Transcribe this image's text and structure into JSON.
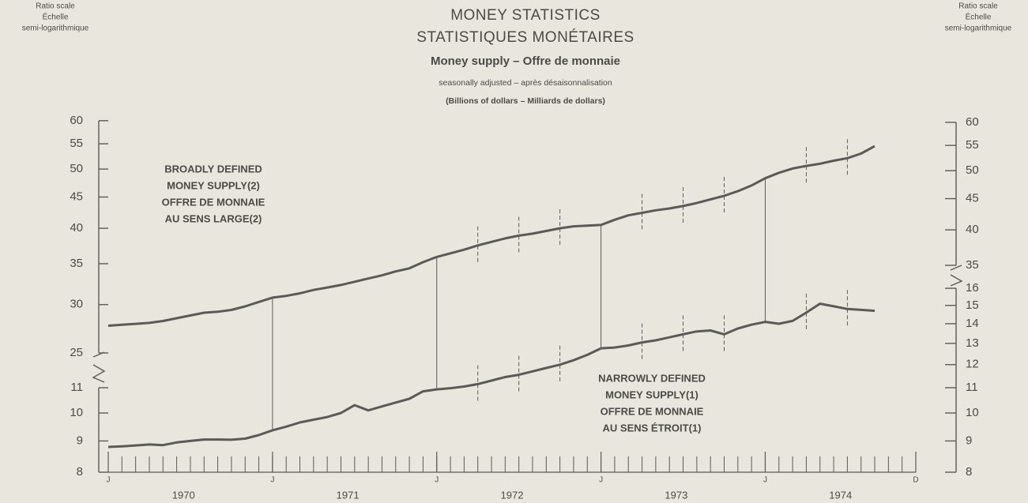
{
  "chart_data": {
    "type": "line",
    "title": "MONEY STATISTICS",
    "title_fr": "STATISTIQUES MONÉTAIRES",
    "subtitle": "Money supply – Offre de monnaie",
    "note": "seasonally adjusted – après désaisonnalisation",
    "units": "(Billions of dollars – Milliards de dollars)",
    "y_axis_label": [
      "Ratio scale",
      "Échelle",
      "semi-logarithmique"
    ],
    "y2_axis_label": [
      "Ratio scale",
      "Échelle",
      "semi-logarithmique"
    ],
    "log_scale": true,
    "x": [
      "1970-01",
      "1970-02",
      "1970-03",
      "1970-04",
      "1970-05",
      "1970-06",
      "1970-07",
      "1970-08",
      "1970-09",
      "1970-10",
      "1970-11",
      "1970-12",
      "1971-01",
      "1971-02",
      "1971-03",
      "1971-04",
      "1971-05",
      "1971-06",
      "1971-07",
      "1971-08",
      "1971-09",
      "1971-10",
      "1971-11",
      "1971-12",
      "1972-01",
      "1972-02",
      "1972-03",
      "1972-04",
      "1972-05",
      "1972-06",
      "1972-07",
      "1972-08",
      "1972-09",
      "1972-10",
      "1972-11",
      "1972-12",
      "1973-01",
      "1973-02",
      "1973-03",
      "1973-04",
      "1973-05",
      "1973-06",
      "1973-07",
      "1973-08",
      "1973-09",
      "1973-10",
      "1973-11",
      "1973-12",
      "1974-01",
      "1974-02",
      "1974-03",
      "1974-04",
      "1974-05",
      "1974-06",
      "1974-07",
      "1974-08",
      "1974-09"
    ],
    "xlim": [
      "1970-01",
      "1974-12"
    ],
    "xticks": [
      {
        "value": "1970-01",
        "label": "J"
      },
      {
        "value": "1971-01",
        "label": "J"
      },
      {
        "value": "1972-01",
        "label": "J"
      },
      {
        "value": "1973-01",
        "label": "J"
      },
      {
        "value": "1974-01",
        "label": "J"
      },
      {
        "value": "1974-12",
        "label": "D"
      }
    ],
    "year_labels": [
      "1970",
      "1971",
      "1972",
      "1973",
      "1974"
    ],
    "ylim": [
      25,
      60
    ],
    "yticks": [
      25,
      30,
      35,
      40,
      45,
      50,
      55,
      60
    ],
    "ylim_lower": [
      8,
      11
    ],
    "yticks_lower": [
      8,
      9,
      10,
      11
    ],
    "y2lim": [
      35,
      60
    ],
    "y2ticks": [
      35,
      40,
      45,
      50,
      55,
      60
    ],
    "y2lim_lower": [
      8,
      16
    ],
    "y2ticks_lower": [
      8,
      9,
      10,
      11,
      12,
      13,
      14,
      15,
      16
    ],
    "series": [
      {
        "name_lines": [
          "BROADLY DEFINED",
          "MONEY SUPPLY(2)",
          "OFFRE DE MONNAIE",
          "AU SENS LARGE(2)"
        ],
        "color": "#5a5a58",
        "axis": "y",
        "segment": "upper",
        "values": [
          27.7,
          27.8,
          27.9,
          28.0,
          28.2,
          28.5,
          28.8,
          29.1,
          29.2,
          29.4,
          29.8,
          30.3,
          30.8,
          31.0,
          31.3,
          31.7,
          32.0,
          32.3,
          32.7,
          33.1,
          33.5,
          34.0,
          34.4,
          35.2,
          35.9,
          36.4,
          36.9,
          37.5,
          38.0,
          38.5,
          38.9,
          39.2,
          39.6,
          40.0,
          40.3,
          40.4,
          40.5,
          41.3,
          42.0,
          42.4,
          42.8,
          43.1,
          43.5,
          44.0,
          44.6,
          45.2,
          46.0,
          47.0,
          48.3,
          49.3,
          50.1,
          50.6,
          51.0,
          51.6,
          52.1,
          53.0,
          54.5
        ]
      },
      {
        "name_lines": [
          "NARROWLY DEFINED",
          "MONEY SUPPLY(1)",
          "OFFRE DE MONNAIE",
          "AU SENS ÉTROIT(1)"
        ],
        "color": "#5a5a58",
        "axis": "y2",
        "segment": "lower",
        "values": [
          8.8,
          8.82,
          8.85,
          8.88,
          8.86,
          8.95,
          9.0,
          9.05,
          9.05,
          9.04,
          9.08,
          9.2,
          9.37,
          9.5,
          9.65,
          9.75,
          9.85,
          10.0,
          10.3,
          10.1,
          10.25,
          10.4,
          10.55,
          10.85,
          10.93,
          10.98,
          11.05,
          11.15,
          11.3,
          11.45,
          11.55,
          11.7,
          11.85,
          12.0,
          12.2,
          12.45,
          12.76,
          12.8,
          12.9,
          13.05,
          13.15,
          13.3,
          13.45,
          13.6,
          13.65,
          13.45,
          13.75,
          13.95,
          14.1,
          14.0,
          14.15,
          14.6,
          15.1,
          14.95,
          14.8,
          14.75,
          14.7
        ]
      }
    ]
  }
}
